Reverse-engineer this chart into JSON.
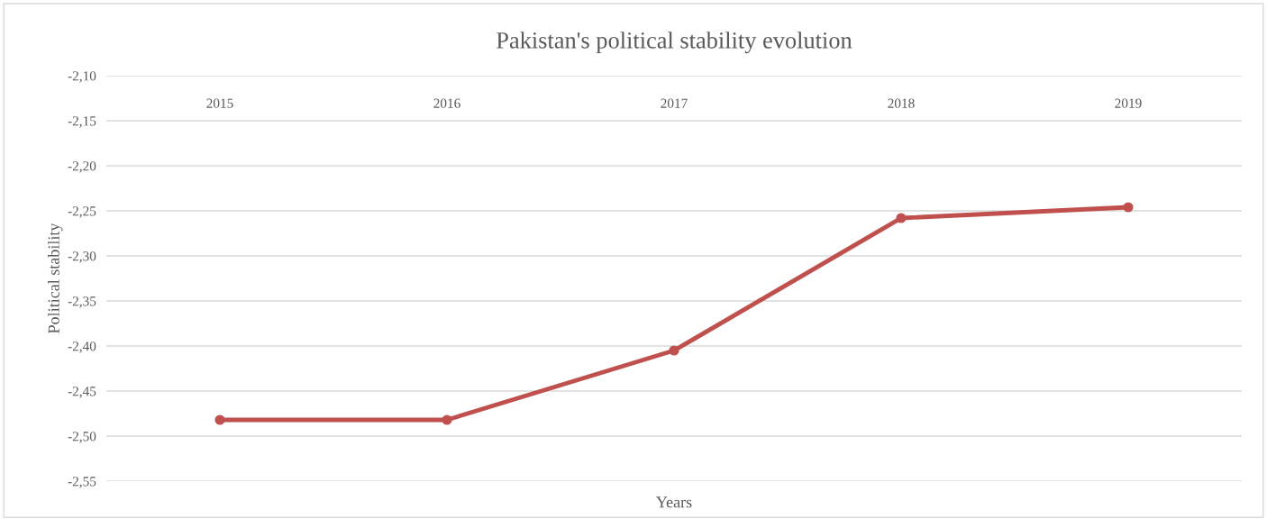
{
  "chart_data": {
    "type": "line",
    "title": "Pakistan's political stability evolution",
    "xlabel": "Years",
    "ylabel": "Political stability",
    "categories": [
      "2015",
      "2016",
      "2017",
      "2018",
      "2019"
    ],
    "series": [
      {
        "color": "#c0504d",
        "values": [
          -2.482,
          -2.482,
          -2.405,
          -2.258,
          -2.246
        ]
      }
    ],
    "ylim": [
      -2.55,
      -2.1
    ],
    "yticks": [
      {
        "value": -2.1,
        "label": "-2,10"
      },
      {
        "value": -2.15,
        "label": "-2,15"
      },
      {
        "value": -2.2,
        "label": "-2,20"
      },
      {
        "value": -2.25,
        "label": "-2,25"
      },
      {
        "value": -2.3,
        "label": "-2,30"
      },
      {
        "value": -2.35,
        "label": "-2,35"
      },
      {
        "value": -2.4,
        "label": "-2,40"
      },
      {
        "value": -2.45,
        "label": "-2,45"
      },
      {
        "value": -2.5,
        "label": "-2,50"
      },
      {
        "value": -2.55,
        "label": "-2,55"
      }
    ],
    "grid": "y",
    "marker": "circle",
    "line_style": "solid"
  }
}
